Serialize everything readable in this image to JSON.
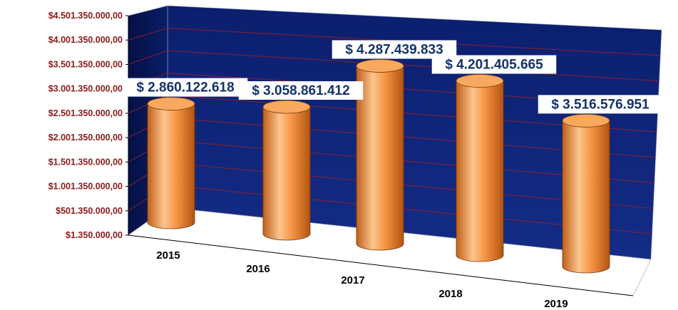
{
  "chart_data": {
    "type": "bar",
    "bar_shape": "cylinder",
    "view": "3d",
    "categories": [
      "2015",
      "2016",
      "2017",
      "2018",
      "2019"
    ],
    "values": [
      2860122618,
      3058861412,
      4287439833,
      4201405665,
      3516576951
    ],
    "data_labels": [
      "$ 2.860.122.618",
      "$ 3.058.861.412",
      "$ 4.287.439.833",
      "$ 4.201.405.665",
      "$ 3.516.576.951"
    ],
    "y_ticks": [
      "$1.350.000,00",
      "$501.350.000,00",
      "$1.001.350.000,00",
      "$1.501.350.000,00",
      "$2.001.350.000,00",
      "$2.501.350.000,00",
      "$3.001.350.000,00",
      "$3.501.350.000,00",
      "$4.001.350.000,00",
      "$4.501.350.000,00"
    ],
    "ylim": [
      1350000,
      4501350000
    ],
    "grid": true,
    "legend": "none",
    "colors": {
      "wall": "#0a1f6b",
      "side_wall": "#071552",
      "gridline": "#8a1f2f",
      "bar": "#f79646",
      "bar_dark": "#c0601a",
      "bar_light": "#fcd2a6",
      "ytick_text": "#8b1a1a",
      "label_text": "#13326b"
    }
  }
}
